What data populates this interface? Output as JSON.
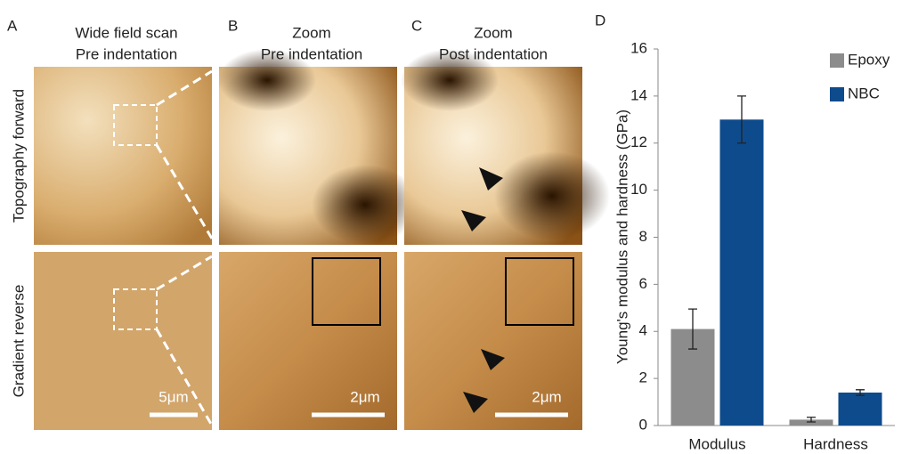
{
  "panels": {
    "a": {
      "letter": "A",
      "title": [
        "Wide field scan",
        "Pre indentation"
      ],
      "scale": "5μm"
    },
    "b": {
      "letter": "B",
      "title": [
        "Zoom",
        "Pre indentation"
      ],
      "scale": "2μm"
    },
    "c": {
      "letter": "C",
      "title": [
        "Zoom",
        "Post indentation"
      ],
      "scale": "2μm"
    },
    "d": {
      "letter": "D"
    },
    "rows": [
      "Topography forward",
      "Gradient reverse"
    ]
  },
  "chart_data": {
    "type": "bar",
    "ylabel": "Young's modulus and hardness (GPa)",
    "categories": [
      "Modulus",
      "Hardness"
    ],
    "series": [
      {
        "name": "Epoxy",
        "color": "#8c8c8c",
        "values": [
          4.1,
          0.25
        ],
        "errors": [
          0.85,
          0.1
        ]
      },
      {
        "name": "NBC",
        "color": "#0e4b8c",
        "values": [
          13.0,
          1.4
        ],
        "errors": [
          1.0,
          0.12
        ]
      }
    ],
    "ylim": [
      0,
      16
    ],
    "yticks": [
      0,
      2,
      4,
      6,
      8,
      10,
      12,
      14,
      16
    ],
    "legend": "upper right"
  }
}
